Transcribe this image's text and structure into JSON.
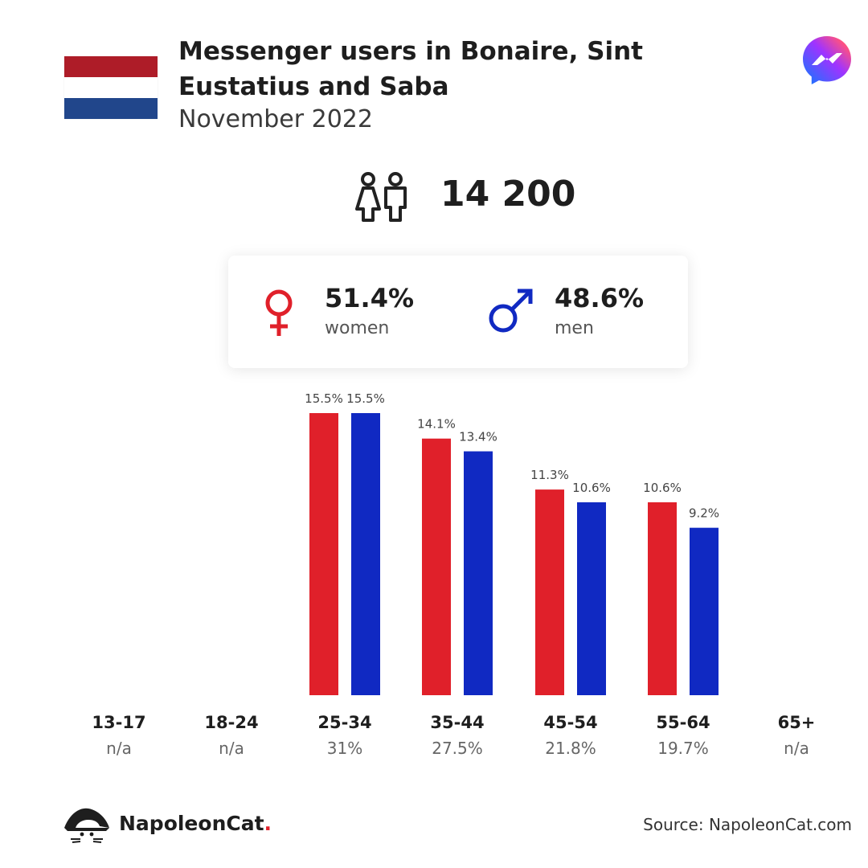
{
  "header": {
    "title": "Messenger users in Bonaire, Sint Eustatius and Saba",
    "subtitle": "November 2022",
    "flag_colors": [
      "#ae1c28",
      "#ffffff",
      "#21468b"
    ],
    "app_icon": "messenger-logo-icon"
  },
  "total": {
    "icon": "people-icon",
    "value": "14 200"
  },
  "gender": {
    "women": {
      "pct": "51.4%",
      "label": "women",
      "icon": "female-symbol-icon",
      "color": "#e0202a"
    },
    "men": {
      "pct": "48.6%",
      "label": "men",
      "icon": "male-symbol-icon",
      "color": "#1029c2"
    }
  },
  "chart_data": {
    "type": "bar",
    "categories": [
      "13-17",
      "18-24",
      "25-34",
      "35-44",
      "45-54",
      "55-64",
      "65+"
    ],
    "category_totals": [
      "n/a",
      "n/a",
      "31%",
      "27.5%",
      "21.8%",
      "19.7%",
      "n/a"
    ],
    "series": [
      {
        "values": [
          null,
          null,
          15.5,
          14.1,
          11.3,
          10.6,
          null
        ],
        "labels": [
          "",
          "",
          "15.5%",
          "14.1%",
          "11.3%",
          "10.6%",
          ""
        ],
        "color": "#e0202a"
      },
      {
        "values": [
          null,
          null,
          15.5,
          13.4,
          10.6,
          9.2,
          null
        ],
        "labels": [
          "",
          "",
          "15.5%",
          "13.4%",
          "10.6%",
          "9.2%",
          ""
        ],
        "color": "#1029c2"
      }
    ],
    "ylim": [
      0,
      15.5
    ],
    "grid": false
  },
  "footer": {
    "brand": "NapoleonCat",
    "brand_dot": ".",
    "logo_icon": "napoleoncat-logo-icon",
    "source": "Source: NapoleonCat.com"
  }
}
